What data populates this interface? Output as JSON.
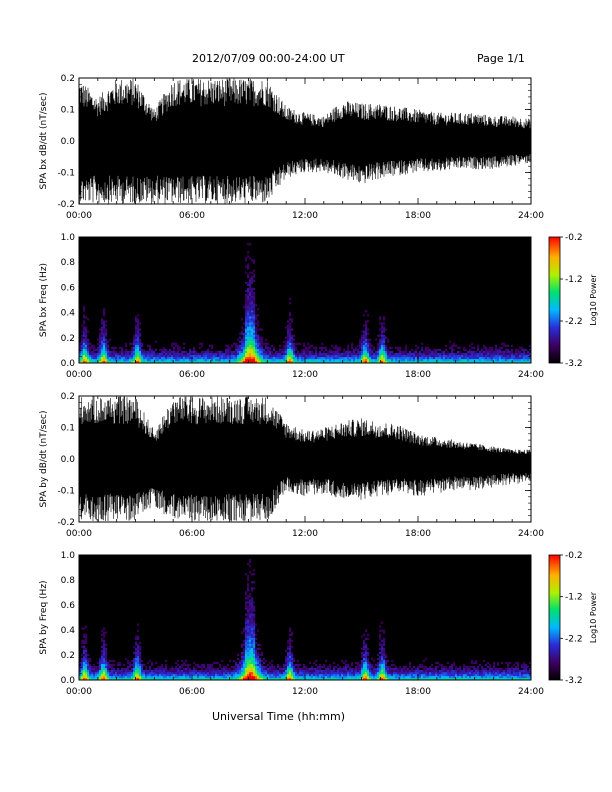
{
  "header": {
    "title": "2012/07/09   00:00-24:00 UT",
    "page": "Page 1/1"
  },
  "footer": {
    "xlabel": "Universal Time (hh:mm)"
  },
  "chart_data": [
    {
      "type": "line",
      "ylabel": "SPA bx dB/dt (nT/sec)",
      "xlim": [
        0,
        24
      ],
      "ylim": [
        -0.2,
        0.2
      ],
      "x_ticks": [
        "00:00",
        "06:00",
        "12:00",
        "18:00",
        "24:00"
      ],
      "y_ticks": [
        "0.2",
        "0.1",
        "0.0",
        "-0.1",
        "-0.2"
      ],
      "y_tick_values": [
        0.2,
        0.1,
        0.0,
        -0.1,
        -0.2
      ],
      "envelope": {
        "hours": [
          0,
          1,
          2,
          3,
          4,
          5,
          6,
          7,
          8,
          9,
          10,
          11,
          12,
          13,
          14,
          15,
          16,
          17,
          18,
          19,
          20,
          21,
          22,
          23,
          24
        ],
        "upper": [
          0.2,
          0.14,
          0.2,
          0.2,
          0.1,
          0.2,
          0.2,
          0.2,
          0.2,
          0.2,
          0.2,
          0.11,
          0.09,
          0.08,
          0.13,
          0.12,
          0.12,
          0.11,
          0.1,
          0.09,
          0.09,
          0.09,
          0.08,
          0.08,
          0.07
        ],
        "lower": [
          -0.2,
          -0.2,
          -0.2,
          -0.2,
          -0.2,
          -0.2,
          -0.2,
          -0.2,
          -0.2,
          -0.2,
          -0.2,
          -0.12,
          -0.1,
          -0.1,
          -0.12,
          -0.14,
          -0.12,
          -0.11,
          -0.1,
          -0.1,
          -0.09,
          -0.09,
          -0.09,
          -0.08,
          -0.07
        ]
      }
    },
    {
      "type": "heatmap",
      "ylabel": "SPA bx Freq (Hz)",
      "xlim": [
        0,
        24
      ],
      "ylim": [
        0,
        1
      ],
      "x_ticks": [
        "00:00",
        "06:00",
        "12:00",
        "18:00",
        "24:00"
      ],
      "y_ticks": [
        "1.0",
        "0.8",
        "0.6",
        "0.4",
        "0.2",
        "0.0"
      ],
      "y_tick_values": [
        1.0,
        0.8,
        0.6,
        0.4,
        0.2,
        0.0
      ],
      "colorbar": {
        "label": "Log10 Power",
        "range": [
          -3.2,
          -0.2
        ],
        "ticks": [
          "-0.2",
          "-1.2",
          "-2.2",
          "-3.2"
        ],
        "tick_values": [
          -0.2,
          -1.2,
          -2.2,
          -3.2
        ]
      },
      "bursts_hours": [
        0.3,
        1.3,
        3.1,
        9.1,
        11.2,
        15.2,
        16.1
      ]
    },
    {
      "type": "line",
      "ylabel": "SPA by dB/dt (nT/sec)",
      "xlim": [
        0,
        24
      ],
      "ylim": [
        -0.2,
        0.2
      ],
      "x_ticks": [
        "00:00",
        "06:00",
        "12:00",
        "18:00",
        "24:00"
      ],
      "y_ticks": [
        "0.2",
        "0.1",
        "0.0",
        "-0.1",
        "-0.2"
      ],
      "y_tick_values": [
        0.2,
        0.1,
        0.0,
        -0.1,
        -0.2
      ],
      "envelope": {
        "hours": [
          0,
          1,
          2,
          3,
          4,
          5,
          6,
          7,
          8,
          9,
          10,
          11,
          12,
          13,
          14,
          15,
          16,
          17,
          18,
          19,
          20,
          21,
          22,
          23,
          24
        ],
        "upper": [
          0.2,
          0.2,
          0.2,
          0.2,
          0.09,
          0.2,
          0.2,
          0.2,
          0.2,
          0.2,
          0.2,
          0.12,
          0.09,
          0.1,
          0.12,
          0.13,
          0.12,
          0.11,
          0.08,
          0.07,
          0.06,
          0.05,
          0.04,
          0.03,
          0.03
        ],
        "lower": [
          -0.2,
          -0.2,
          -0.2,
          -0.2,
          -0.15,
          -0.2,
          -0.2,
          -0.2,
          -0.2,
          -0.2,
          -0.2,
          -0.1,
          -0.12,
          -0.11,
          -0.13,
          -0.13,
          -0.12,
          -0.11,
          -0.12,
          -0.11,
          -0.1,
          -0.1,
          -0.09,
          -0.08,
          -0.08
        ]
      }
    },
    {
      "type": "heatmap",
      "ylabel": "SPA by Freq (Hz)",
      "xlim": [
        0,
        24
      ],
      "ylim": [
        0,
        1
      ],
      "x_ticks": [
        "00:00",
        "06:00",
        "12:00",
        "18:00",
        "24:00"
      ],
      "y_ticks": [
        "1.0",
        "0.8",
        "0.6",
        "0.4",
        "0.2",
        "0.0"
      ],
      "y_tick_values": [
        1.0,
        0.8,
        0.6,
        0.4,
        0.2,
        0.0
      ],
      "colorbar": {
        "label": "Log10 Power",
        "range": [
          -3.2,
          -0.2
        ],
        "ticks": [
          "-0.2",
          "-1.2",
          "-2.2",
          "-3.2"
        ],
        "tick_values": [
          -0.2,
          -1.2,
          -2.2,
          -3.2
        ]
      },
      "bursts_hours": [
        0.3,
        1.3,
        3.1,
        9.1,
        11.2,
        15.2,
        16.1
      ]
    }
  ]
}
